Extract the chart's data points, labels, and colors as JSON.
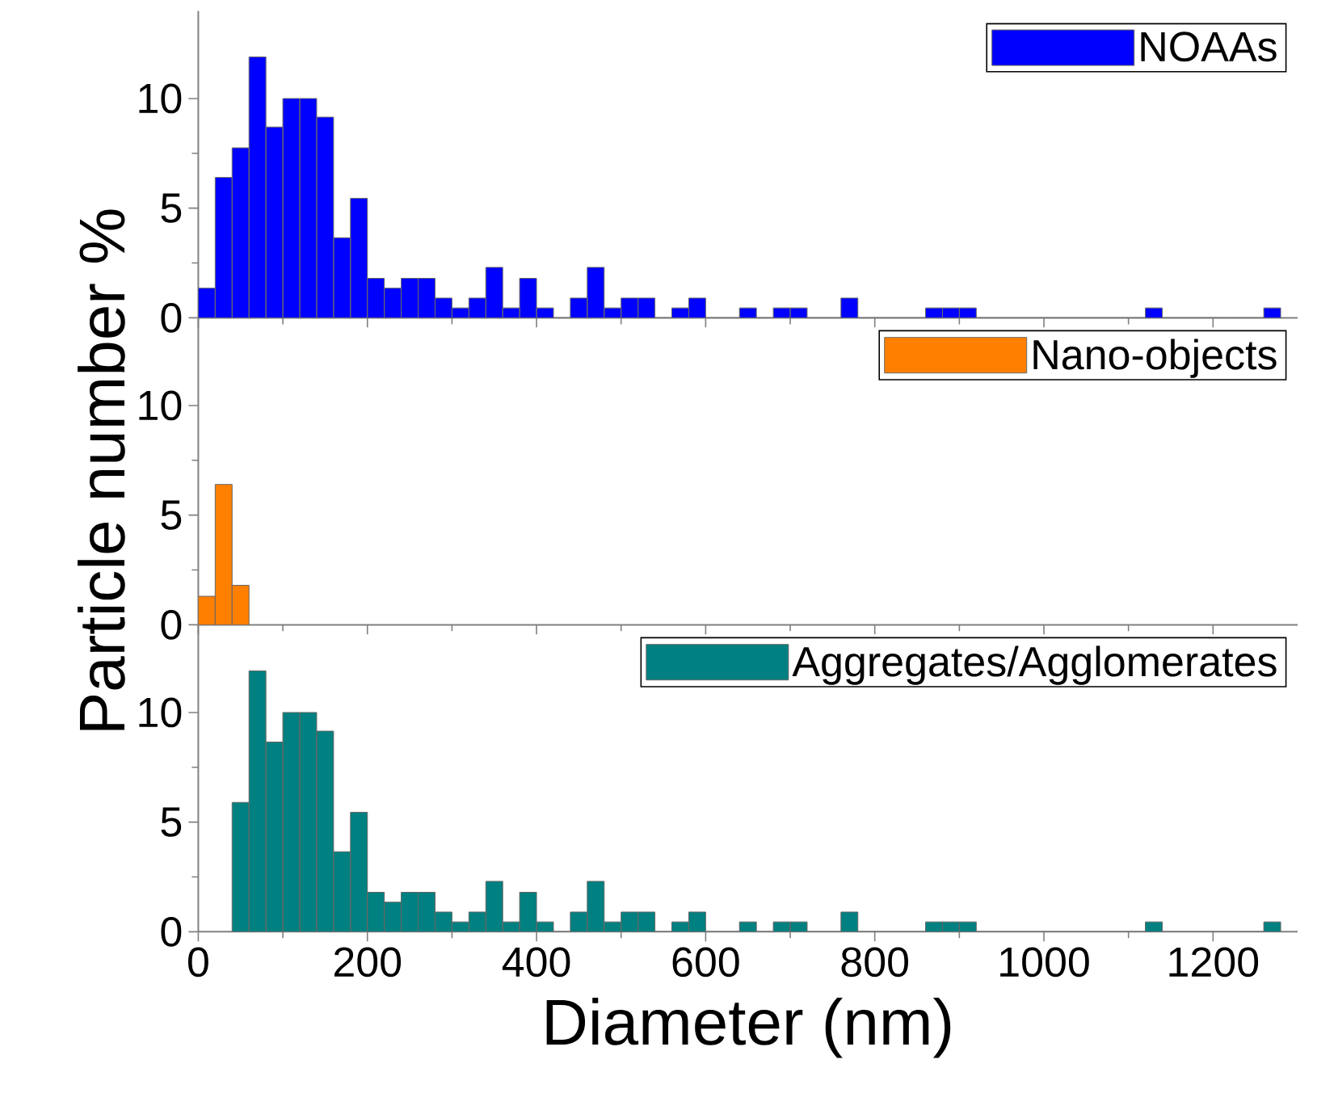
{
  "chart_data": [
    {
      "type": "histogram",
      "bins": [
        0,
        20,
        40,
        60,
        80,
        100,
        120,
        140,
        160,
        180,
        200,
        220,
        240,
        260,
        280,
        300,
        320,
        340,
        360,
        380,
        400,
        420,
        440,
        460,
        480,
        500,
        520,
        540,
        560,
        580,
        600,
        620,
        640,
        660,
        680,
        700,
        720,
        740,
        760,
        780,
        800,
        820,
        840,
        860,
        880,
        900,
        920,
        940,
        960,
        980,
        1000,
        1020,
        1040,
        1060,
        1080,
        1100,
        1120,
        1140,
        1160,
        1180,
        1200,
        1220,
        1240,
        1260,
        1280
      ],
      "series": [
        {
          "name": "NOAAs",
          "color": "#0000ff",
          "values": [
            1.35,
            6.4,
            7.75,
            11.9,
            8.7,
            10,
            10,
            9.15,
            3.65,
            5.45,
            1.8,
            1.35,
            1.8,
            1.8,
            0.9,
            0.45,
            0.9,
            2.3,
            0.45,
            1.8,
            0.45,
            0,
            0.9,
            2.3,
            0.45,
            0.9,
            0.9,
            0,
            0.45,
            0.9,
            0,
            0,
            0.45,
            0,
            0.45,
            0.45,
            0,
            0,
            0.9,
            0,
            0,
            0,
            0,
            0.45,
            0.45,
            0.45,
            0,
            0,
            0,
            0,
            0,
            0,
            0,
            0,
            0,
            0,
            0.45,
            0,
            0,
            0,
            0,
            0,
            0,
            0.45
          ]
        }
      ],
      "xlim": [
        0,
        1300
      ],
      "xticks": [
        0,
        200,
        400,
        600,
        800,
        1000,
        1200
      ],
      "ylim": [
        0,
        14
      ],
      "yticks": [
        0,
        5,
        10
      ],
      "legend": "top right",
      "tick_labels": "y"
    },
    {
      "type": "histogram",
      "bins": [
        0,
        20,
        40,
        60
      ],
      "series": [
        {
          "name": "Nano-objects",
          "color": "#ff8000",
          "values": [
            1.3,
            6.4,
            1.8
          ]
        }
      ],
      "ylabel": "Particle number %",
      "xlim": [
        0,
        1300
      ],
      "xticks": [
        0,
        200,
        400,
        600,
        800,
        1000,
        1200
      ],
      "ylim": [
        0,
        14
      ],
      "yticks": [
        0,
        5,
        10
      ],
      "legend": "top right",
      "tick_labels": "y"
    },
    {
      "type": "histogram",
      "bins": [
        40,
        60,
        80,
        100,
        120,
        140,
        160,
        180,
        200,
        220,
        240,
        260,
        280,
        300,
        320,
        340,
        360,
        380,
        400,
        420,
        440,
        460,
        480,
        500,
        520,
        540,
        560,
        580,
        600,
        620,
        640,
        660,
        680,
        700,
        720,
        740,
        760,
        780,
        800,
        820,
        840,
        860,
        880,
        900,
        920,
        940,
        960,
        980,
        1000,
        1020,
        1040,
        1060,
        1080,
        1100,
        1120,
        1140,
        1160,
        1180,
        1200,
        1220,
        1240,
        1260,
        1280
      ],
      "series": [
        {
          "name": "Aggregates/Agglomerates",
          "color": "#008080",
          "values": [
            5.9,
            11.9,
            8.65,
            10,
            10,
            9.15,
            3.65,
            5.45,
            1.8,
            1.35,
            1.8,
            1.8,
            0.9,
            0.45,
            0.9,
            2.3,
            0.45,
            1.8,
            0.45,
            0,
            0.9,
            2.3,
            0.45,
            0.9,
            0.9,
            0,
            0.45,
            0.9,
            0,
            0,
            0.45,
            0,
            0.45,
            0.45,
            0,
            0,
            0.9,
            0,
            0,
            0,
            0,
            0.45,
            0.45,
            0.45,
            0,
            0,
            0,
            0,
            0,
            0,
            0,
            0,
            0,
            0,
            0.45,
            0,
            0,
            0,
            0,
            0,
            0,
            0.45
          ]
        }
      ],
      "xlabel": "Diameter (nm)",
      "xlim": [
        0,
        1300
      ],
      "xticks": [
        0,
        200,
        400,
        600,
        800,
        1000,
        1200
      ],
      "ylim": [
        0,
        14
      ],
      "yticks": [
        0,
        5,
        10
      ],
      "legend": "top right"
    }
  ]
}
